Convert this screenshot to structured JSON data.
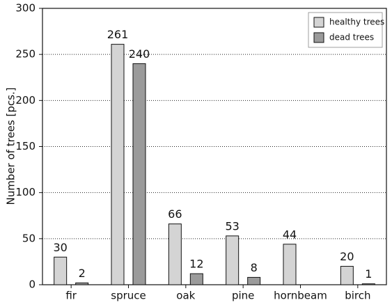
{
  "chart_data": {
    "type": "bar",
    "y_label": "Number of trees [pcs.]",
    "categories": [
      "fir",
      "spruce",
      "oak",
      "pine",
      "hornbeam",
      "birch"
    ],
    "series": [
      {
        "name": "healthy trees",
        "color": "#d4d4d4",
        "values": [
          30,
          261,
          66,
          53,
          44,
          20
        ]
      },
      {
        "name": "dead trees",
        "color": "#9b9b9b",
        "values": [
          2,
          240,
          12,
          8,
          null,
          1
        ]
      }
    ],
    "ylim": [
      0,
      300
    ],
    "yticks": [
      0,
      50,
      100,
      150,
      200,
      250,
      300
    ],
    "grid": true,
    "legend": "top-right",
    "value_labels_shown": true
  }
}
